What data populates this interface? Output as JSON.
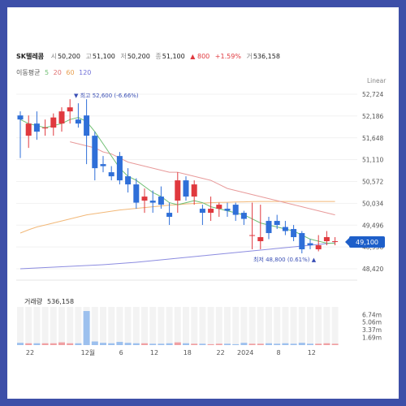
{
  "stock": {
    "name": "SK텔레콤",
    "open_label": "시",
    "open": "50,200",
    "high_label": "고",
    "high": "51,100",
    "low_label": "저",
    "low": "50,200",
    "close_label": "종",
    "close": "51,100",
    "change": "▲ 800",
    "change_pct": "+1.59%",
    "volume_label": "거",
    "volume": "536,158"
  },
  "ma_legend": {
    "title": "이동평균",
    "periods": [
      "5",
      "20",
      "60",
      "120"
    ]
  },
  "scale_label": "Linear",
  "price_tag": "49,100",
  "annotations": {
    "max": "▼ 최고 52,600 (-6.66%)",
    "min": "최저 48,800 (0.61%) ▲"
  },
  "volume_panel": {
    "title": "거래량",
    "value": "536,158"
  },
  "colors": {
    "up": "#e0393e",
    "down": "#2f6fd8",
    "ma5": "#6fbf73",
    "ma20": "#e89a9a",
    "ma60": "#f2b878",
    "ma120": "#8c8ce0",
    "price_tag_bg": "#1e5fc9",
    "frame": "#3d4fa8"
  },
  "chart_data": {
    "type": "candlestick",
    "y_ticks": [
      "52,724",
      "52,186",
      "51,648",
      "51,110",
      "50,572",
      "50,034",
      "49,496",
      "48,958",
      "48,420"
    ],
    "ylim": [
      48420,
      52724
    ],
    "volume_ticks": [
      "6.74m",
      "5.06m",
      "3.37m",
      "1.69m"
    ],
    "volume_ylim": [
      0,
      8.4
    ],
    "x_ticks": [
      {
        "label": "22",
        "index": 0
      },
      {
        "label": "12월",
        "index": 7
      },
      {
        "label": "6",
        "index": 11
      },
      {
        "label": "12",
        "index": 15
      },
      {
        "label": "18",
        "index": 19
      },
      {
        "label": "22",
        "index": 23
      },
      {
        "label": "2024",
        "index": 26
      },
      {
        "label": "8",
        "index": 30
      },
      {
        "label": "12",
        "index": 34
      }
    ],
    "candles": [
      {
        "o": 52200,
        "h": 52300,
        "l": 51150,
        "c": 52100,
        "v": 0.5
      },
      {
        "o": 51700,
        "h": 52200,
        "l": 51400,
        "c": 52000,
        "v": 0.4
      },
      {
        "o": 52000,
        "h": 52300,
        "l": 51600,
        "c": 51800,
        "v": 0.4
      },
      {
        "o": 51900,
        "h": 52100,
        "l": 51700,
        "c": 51900,
        "v": 0.4
      },
      {
        "o": 51900,
        "h": 52250,
        "l": 51700,
        "c": 52150,
        "v": 0.4
      },
      {
        "o": 52000,
        "h": 52400,
        "l": 51800,
        "c": 52300,
        "v": 0.6
      },
      {
        "o": 52300,
        "h": 52600,
        "l": 52000,
        "c": 52400,
        "v": 0.4
      },
      {
        "o": 52100,
        "h": 52500,
        "l": 51900,
        "c": 52000,
        "v": 0.4
      },
      {
        "o": 52200,
        "h": 52600,
        "l": 51000,
        "c": 51700,
        "v": 7.5
      },
      {
        "o": 51700,
        "h": 51800,
        "l": 50600,
        "c": 50900,
        "v": 0.8
      },
      {
        "o": 51000,
        "h": 51200,
        "l": 50800,
        "c": 50950,
        "v": 0.5
      },
      {
        "o": 50800,
        "h": 50950,
        "l": 50600,
        "c": 50700,
        "v": 0.4
      },
      {
        "o": 51200,
        "h": 51300,
        "l": 50500,
        "c": 50600,
        "v": 0.7
      },
      {
        "o": 50700,
        "h": 50900,
        "l": 50300,
        "c": 50500,
        "v": 0.5
      },
      {
        "o": 50500,
        "h": 50650,
        "l": 49900,
        "c": 50050,
        "v": 0.4
      },
      {
        "o": 50100,
        "h": 50400,
        "l": 49800,
        "c": 50200,
        "v": 0.4
      },
      {
        "o": 50100,
        "h": 50350,
        "l": 49800,
        "c": 50050,
        "v": 0.3
      },
      {
        "o": 50200,
        "h": 50450,
        "l": 49900,
        "c": 50000,
        "v": 0.3
      },
      {
        "o": 49800,
        "h": 50050,
        "l": 49500,
        "c": 49700,
        "v": 0.4
      },
      {
        "o": 50100,
        "h": 50800,
        "l": 49800,
        "c": 50600,
        "v": 0.6
      },
      {
        "o": 50600,
        "h": 50700,
        "l": 50100,
        "c": 50200,
        "v": 0.4
      },
      {
        "o": 50200,
        "h": 50600,
        "l": 50000,
        "c": 50500,
        "v": 0.3
      },
      {
        "o": 49900,
        "h": 50000,
        "l": 49500,
        "c": 49800,
        "v": 0.3
      },
      {
        "o": 49800,
        "h": 50200,
        "l": 49600,
        "c": 49900,
        "v": 0.2
      },
      {
        "o": 49900,
        "h": 50050,
        "l": 49700,
        "c": 50000,
        "v": 0.3
      },
      {
        "o": 49900,
        "h": 50050,
        "l": 49700,
        "c": 49850,
        "v": 0.3
      },
      {
        "o": 50000,
        "h": 50050,
        "l": 49600,
        "c": 49750,
        "v": 0.2
      },
      {
        "o": 49800,
        "h": 49850,
        "l": 49500,
        "c": 49650,
        "v": 0.5
      },
      {
        "o": 49250,
        "h": 50050,
        "l": 48900,
        "c": 49250,
        "v": 0.3
      },
      {
        "o": 49100,
        "h": 50000,
        "l": 48900,
        "c": 49200,
        "v": 0.3
      },
      {
        "o": 49600,
        "h": 49700,
        "l": 49150,
        "c": 49300,
        "v": 0.4
      },
      {
        "o": 49600,
        "h": 49750,
        "l": 49400,
        "c": 49500,
        "v": 0.3
      },
      {
        "o": 49450,
        "h": 49600,
        "l": 49250,
        "c": 49350,
        "v": 0.4
      },
      {
        "o": 49400,
        "h": 49500,
        "l": 49100,
        "c": 49200,
        "v": 0.3
      },
      {
        "o": 49300,
        "h": 49350,
        "l": 48800,
        "c": 48900,
        "v": 0.5
      },
      {
        "o": 49050,
        "h": 49150,
        "l": 48900,
        "c": 49000,
        "v": 0.3
      },
      {
        "o": 48900,
        "h": 49250,
        "l": 48850,
        "c": 49000,
        "v": 0.3
      },
      {
        "o": 49100,
        "h": 49350,
        "l": 49000,
        "c": 49200,
        "v": 0.4
      },
      {
        "o": 49100,
        "h": 49200,
        "l": 49000,
        "c": 49100,
        "v": 0.3
      }
    ],
    "ma5": [
      52100,
      52000,
      51950,
      51900,
      51950,
      52000,
      52100,
      52150,
      52050,
      51800,
      51500,
      51200,
      50900,
      50700,
      50600,
      50450,
      50300,
      50200,
      50050,
      50000,
      50050,
      50100,
      50050,
      49950,
      49900,
      49850,
      49800,
      49750,
      49650,
      49550,
      49500,
      49450,
      49400,
      49350,
      49250,
      49150,
      49100,
      49050,
      49050
    ],
    "ma20": [
      null,
      null,
      null,
      null,
      null,
      null,
      51550,
      51500,
      51450,
      51400,
      51300,
      51250,
      51150,
      51050,
      51000,
      50950,
      50900,
      50850,
      50800,
      50800,
      50750,
      50700,
      50650,
      50600,
      50500,
      50400,
      50350,
      50300,
      50250,
      50200,
      50150,
      50100,
      50050,
      50000,
      49950,
      49900,
      49850,
      49800,
      49750
    ],
    "ma60": [
      49300,
      49380,
      49450,
      49500,
      49550,
      49600,
      49650,
      49700,
      49750,
      49780,
      49810,
      49840,
      49870,
      49890,
      49910,
      49930,
      49950,
      49970,
      49990,
      50000,
      50020,
      50030,
      50040,
      50050,
      50055,
      50060,
      50065,
      50070,
      50075,
      50080,
      50080,
      50080,
      50080,
      50080,
      50080,
      50080,
      50080,
      50080,
      50080
    ],
    "ma120": [
      48420,
      48430,
      48440,
      48450,
      48460,
      48470,
      48480,
      48490,
      48500,
      48510,
      48520,
      48535,
      48550,
      48565,
      48580,
      48600,
      48620,
      48640,
      48660,
      48680,
      48700,
      48720,
      48740,
      48760,
      48780,
      48800,
      48820,
      48840,
      48860,
      48880,
      48900,
      48920,
      48940,
      48960,
      48980,
      49000,
      49020,
      49040,
      49060
    ]
  }
}
